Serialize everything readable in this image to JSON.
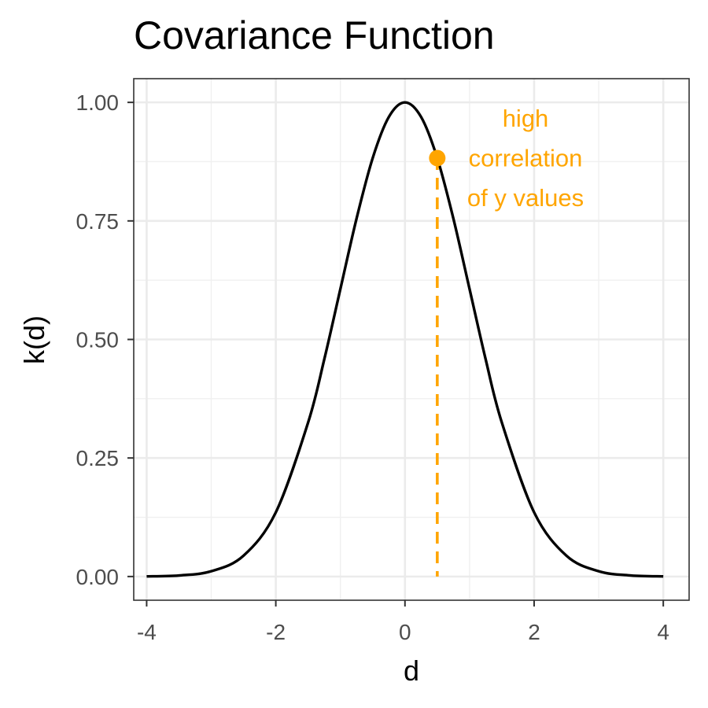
{
  "chart_data": {
    "type": "line",
    "title": "Covariance Function",
    "xlabel": "d",
    "ylabel": "k(d)",
    "xlim": [
      -4.2,
      4.4
    ],
    "ylim": [
      -0.05,
      1.05
    ],
    "x_ticks": [
      -4,
      -2,
      0,
      2,
      4
    ],
    "x_tick_labels": [
      "-4",
      "-2",
      "0",
      "2",
      "4"
    ],
    "y_ticks": [
      0,
      0.25,
      0.5,
      0.75,
      1
    ],
    "y_tick_labels": [
      "0.00",
      "0.25",
      "0.50",
      "0.75",
      "1.00"
    ],
    "grid": true,
    "series": [
      {
        "x": [
          -4.0,
          -3.5,
          -3.0,
          -2.5,
          -2.0,
          -1.5,
          -1.25,
          -1.0,
          -0.75,
          -0.5,
          -0.25,
          0.0,
          0.25,
          0.5,
          0.75,
          1.0,
          1.25,
          1.5,
          2.0,
          2.5,
          3.0,
          3.5,
          4.0
        ],
        "y": [
          0.0003,
          0.0022,
          0.0111,
          0.0439,
          0.1353,
          0.3247,
          0.4578,
          0.6065,
          0.7548,
          0.8825,
          0.9692,
          1.0,
          0.9692,
          0.8825,
          0.7548,
          0.6065,
          0.4578,
          0.3247,
          0.1353,
          0.0439,
          0.0111,
          0.0022,
          0.0003
        ],
        "color": "#000000"
      }
    ],
    "highlight": {
      "x": 0.5,
      "y": 0.8825,
      "color": "#FFA500"
    },
    "annotation": {
      "lines": [
        "high",
        "correlation",
        "of y values"
      ],
      "color": "#FFA500"
    }
  }
}
